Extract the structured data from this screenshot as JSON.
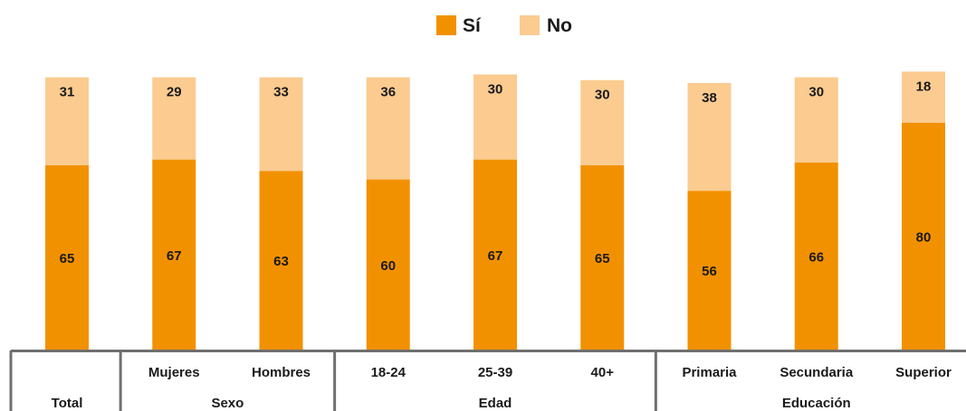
{
  "chart_data": {
    "type": "bar",
    "stacked": true,
    "categories": [
      "",
      "Mujeres",
      "Hombres",
      "18-24",
      "25-39",
      "40+",
      "Primaria",
      "Secundaria",
      "Superior"
    ],
    "groups": [
      {
        "label": "Total",
        "span": 1
      },
      {
        "label": "Sexo",
        "span": 2
      },
      {
        "label": "Edad",
        "span": 3
      },
      {
        "label": "Educación",
        "span": 3
      }
    ],
    "series": [
      {
        "name": "Sí",
        "color": "#F29100",
        "values": [
          65,
          67,
          63,
          60,
          67,
          65,
          56,
          66,
          80
        ]
      },
      {
        "name": "No",
        "color": "#FBCB90",
        "values": [
          31,
          29,
          33,
          36,
          30,
          30,
          38,
          30,
          18
        ]
      }
    ],
    "ylim": [
      0,
      100
    ],
    "legend": "top-center",
    "grid": false
  }
}
